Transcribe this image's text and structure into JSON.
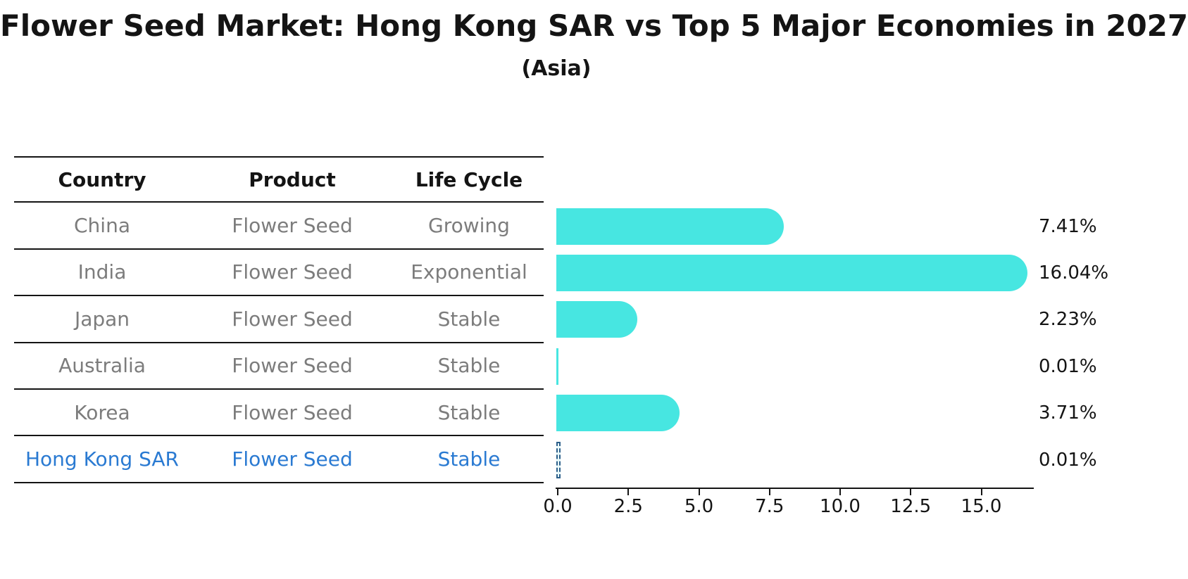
{
  "chart_data": {
    "type": "bar",
    "orientation": "horizontal",
    "title": "Flower Seed Market: Hong Kong SAR vs Top 5 Major Economies in 2027",
    "subtitle": "(Asia)",
    "categories": [
      "China",
      "India",
      "Japan",
      "Australia",
      "Korea",
      "Hong Kong SAR"
    ],
    "values": [
      7.41,
      16.04,
      2.23,
      0.01,
      3.71,
      0.01
    ],
    "value_labels": [
      "7.41%",
      "16.04%",
      "2.23%",
      "0.01%",
      "3.71%",
      "0.01%"
    ],
    "x_ticks": [
      0.0,
      2.5,
      5.0,
      7.5,
      10.0,
      12.5,
      15.0
    ],
    "x_tick_labels": [
      "0.0",
      "2.5",
      "5.0",
      "7.5",
      "10.0",
      "12.5",
      "15.0"
    ],
    "xlim": [
      0,
      16.9
    ],
    "xlabel": "",
    "ylabel": "",
    "grid": false,
    "legend": null,
    "bar_color": "#47e6e1",
    "highlight": {
      "index": 5,
      "category": "Hong Kong SAR",
      "style": "dashed-outline",
      "edge_color": "#2c5f8a",
      "text_color": "#2a7ad2"
    }
  },
  "table": {
    "headers": [
      "Country",
      "Product",
      "Life Cycle"
    ],
    "rows": [
      {
        "country": "China",
        "product": "Flower Seed",
        "life_cycle": "Growing",
        "highlight": false
      },
      {
        "country": "India",
        "product": "Flower Seed",
        "life_cycle": "Exponential",
        "highlight": false
      },
      {
        "country": "Japan",
        "product": "Flower Seed",
        "life_cycle": "Stable",
        "highlight": false
      },
      {
        "country": "Australia",
        "product": "Flower Seed",
        "life_cycle": "Stable",
        "highlight": false
      },
      {
        "country": "Korea",
        "product": "Flower Seed",
        "life_cycle": "Stable",
        "highlight": false
      },
      {
        "country": "Hong Kong SAR",
        "product": "Flower Seed",
        "life_cycle": "Stable",
        "highlight": true
      }
    ]
  },
  "colors": {
    "bar": "#47e6e1",
    "line": "#141414",
    "row_text": "#7c7c7c",
    "highlight_text": "#2a7ad2",
    "highlight_edge": "#2c5f8a"
  }
}
